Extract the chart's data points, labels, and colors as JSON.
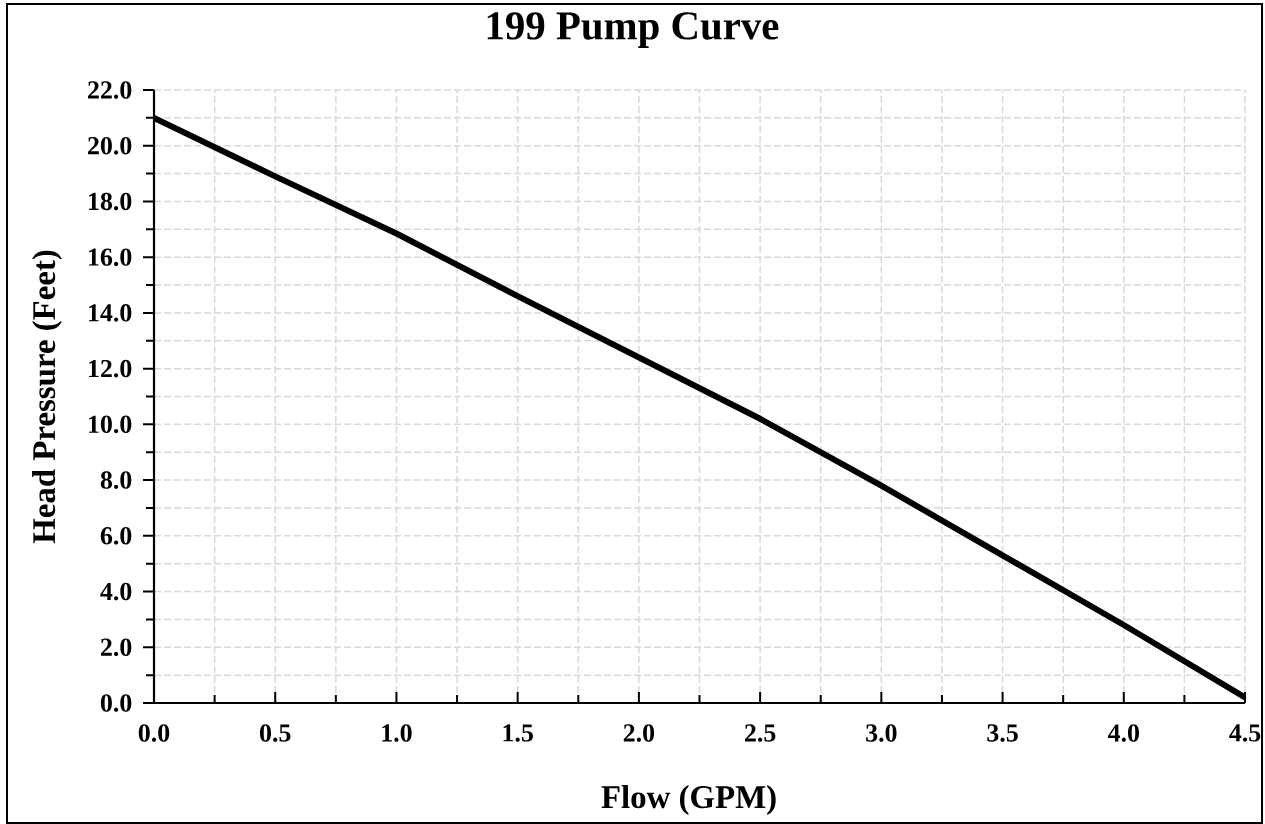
{
  "chart_data": {
    "type": "line",
    "title": "199 Pump Curve",
    "xlabel": "Flow (GPM)",
    "ylabel": "Head Pressure (Feet)",
    "x": [
      0,
      0.5,
      1.0,
      1.5,
      2.0,
      2.5,
      3.0,
      3.5,
      4.0,
      4.5
    ],
    "series": [
      {
        "color": "#000000",
        "values": [
          21.0,
          18.9,
          16.85,
          14.6,
          12.4,
          10.2,
          7.8,
          5.3,
          2.8,
          0.2
        ]
      }
    ],
    "xlim": [
      0,
      4.5
    ],
    "ylim": [
      0,
      22
    ],
    "xticks": [
      {
        "value": 0,
        "label": "0.0"
      },
      {
        "value": 0.25,
        "label": null
      },
      {
        "value": 0.5,
        "label": "0.5"
      },
      {
        "value": 0.75,
        "label": null
      },
      {
        "value": 1,
        "label": "1.0"
      },
      {
        "value": 1.25,
        "label": null
      },
      {
        "value": 1.5,
        "label": "1.5"
      },
      {
        "value": 1.75,
        "label": null
      },
      {
        "value": 2,
        "label": "2.0"
      },
      {
        "value": 2.25,
        "label": null
      },
      {
        "value": 2.5,
        "label": "2.5"
      },
      {
        "value": 2.75,
        "label": null
      },
      {
        "value": 3,
        "label": "3.0"
      },
      {
        "value": 3.25,
        "label": null
      },
      {
        "value": 3.5,
        "label": "3.5"
      },
      {
        "value": 3.75,
        "label": null
      },
      {
        "value": 4,
        "label": "4.0"
      },
      {
        "value": 4.25,
        "label": null
      },
      {
        "value": 4.5,
        "label": "4.5"
      }
    ],
    "yticks": [
      {
        "value": 0,
        "label": "0.0"
      },
      {
        "value": 1,
        "label": null
      },
      {
        "value": 2,
        "label": "2.0"
      },
      {
        "value": 3,
        "label": null
      },
      {
        "value": 4,
        "label": "4.0"
      },
      {
        "value": 5,
        "label": null
      },
      {
        "value": 6,
        "label": "6.0"
      },
      {
        "value": 7,
        "label": null
      },
      {
        "value": 8,
        "label": "8.0"
      },
      {
        "value": 9,
        "label": null
      },
      {
        "value": 10,
        "label": "10.0"
      },
      {
        "value": 11,
        "label": null
      },
      {
        "value": 12,
        "label": "12.0"
      },
      {
        "value": 13,
        "label": null
      },
      {
        "value": 14,
        "label": "14.0"
      },
      {
        "value": 15,
        "label": null
      },
      {
        "value": 16,
        "label": "16.0"
      },
      {
        "value": 17,
        "label": null
      },
      {
        "value": 18,
        "label": "18.0"
      },
      {
        "value": 19,
        "label": null
      },
      {
        "value": 20,
        "label": "20.0"
      },
      {
        "value": 21,
        "label": null
      },
      {
        "value": 22,
        "label": "22.0"
      }
    ],
    "grid": true,
    "marker": "none",
    "line_style": "solid"
  }
}
